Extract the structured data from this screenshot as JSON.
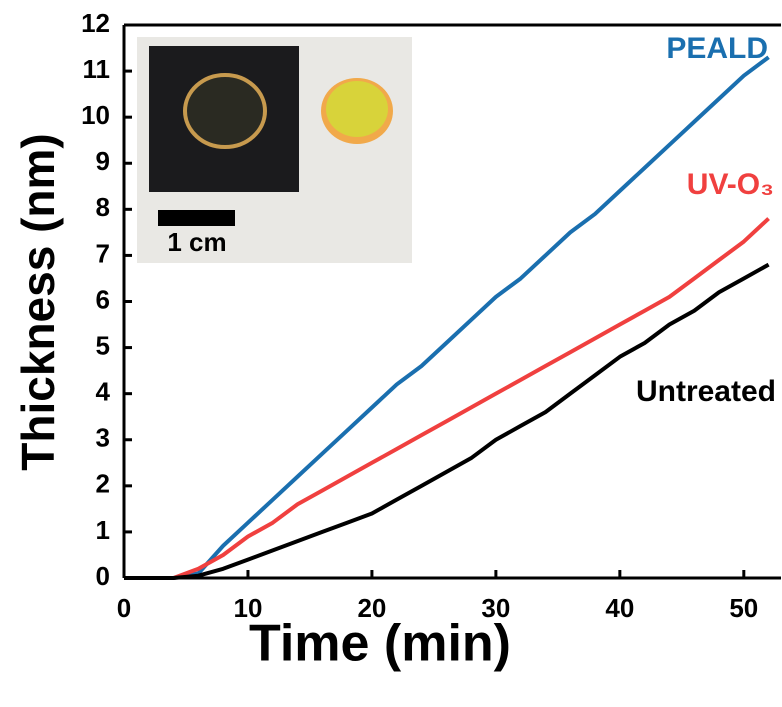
{
  "chart_data": {
    "type": "line",
    "xlabel": "Time (min)",
    "ylabel": "Thickness (nm)",
    "inset_scale_label": "1 cm",
    "x": [
      0,
      2,
      4,
      6,
      8,
      10,
      12,
      14,
      16,
      18,
      20,
      22,
      24,
      26,
      28,
      30,
      32,
      34,
      36,
      38,
      40,
      42,
      44,
      46,
      48,
      50,
      52
    ],
    "series": [
      {
        "name": "PEALD",
        "color": "#1a6faf",
        "values": [
          0,
          0,
          0,
          0.1,
          0.7,
          1.2,
          1.7,
          2.2,
          2.7,
          3.2,
          3.7,
          4.2,
          4.6,
          5.1,
          5.6,
          6.1,
          6.5,
          7.0,
          7.5,
          7.9,
          8.4,
          8.9,
          9.4,
          9.9,
          10.4,
          10.9,
          11.3
        ]
      },
      {
        "name": "UV-O₃",
        "color": "#f0403f",
        "values": [
          0,
          0,
          0,
          0.2,
          0.5,
          0.9,
          1.2,
          1.6,
          1.9,
          2.2,
          2.5,
          2.8,
          3.1,
          3.4,
          3.7,
          4.0,
          4.3,
          4.6,
          4.9,
          5.2,
          5.5,
          5.8,
          6.1,
          6.5,
          6.9,
          7.3,
          7.8
        ]
      },
      {
        "name": "Untreated",
        "color": "#000000",
        "values": [
          0,
          0,
          0,
          0.05,
          0.2,
          0.4,
          0.6,
          0.8,
          1.0,
          1.2,
          1.4,
          1.7,
          2.0,
          2.3,
          2.6,
          3.0,
          3.3,
          3.6,
          4.0,
          4.4,
          4.8,
          5.1,
          5.5,
          5.8,
          6.2,
          6.5,
          6.8
        ]
      }
    ],
    "xlim": [
      0,
      53
    ],
    "ylim": [
      0,
      12
    ],
    "xticks": [
      0,
      10,
      20,
      30,
      40,
      50
    ],
    "yticks": [
      0,
      1,
      2,
      3,
      4,
      5,
      6,
      7,
      8,
      9,
      10,
      11,
      12
    ],
    "grid": false
  }
}
